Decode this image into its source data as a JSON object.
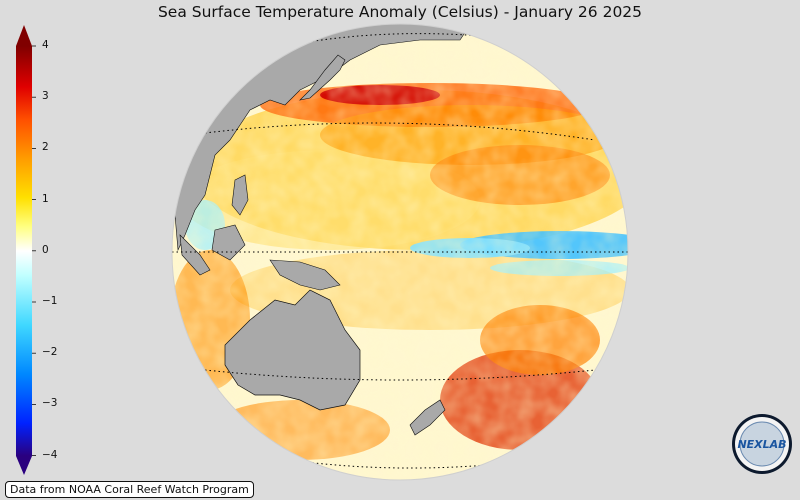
{
  "title": "Sea Surface Temperature Anomaly (Celsius) - January 26 2025",
  "colorbar": {
    "ticks": [
      "4",
      "3",
      "2",
      "1",
      "0",
      "−1",
      "−2",
      "−3",
      "−4"
    ],
    "colors": [
      "#2a007f",
      "#0033ff",
      "#00a0ff",
      "#7fffff",
      "#ffffff",
      "#ffff40",
      "#ffb000",
      "#ff3000",
      "#800000"
    ]
  },
  "credit": "Data from NOAA Coral Reef Watch Program",
  "logo": {
    "text": "NEXLAB",
    "icon": "nexlab-logo"
  },
  "map": {
    "projection": "orthographic",
    "land_color": "#a9a9a9",
    "ocean_base": "#ffffff"
  }
}
